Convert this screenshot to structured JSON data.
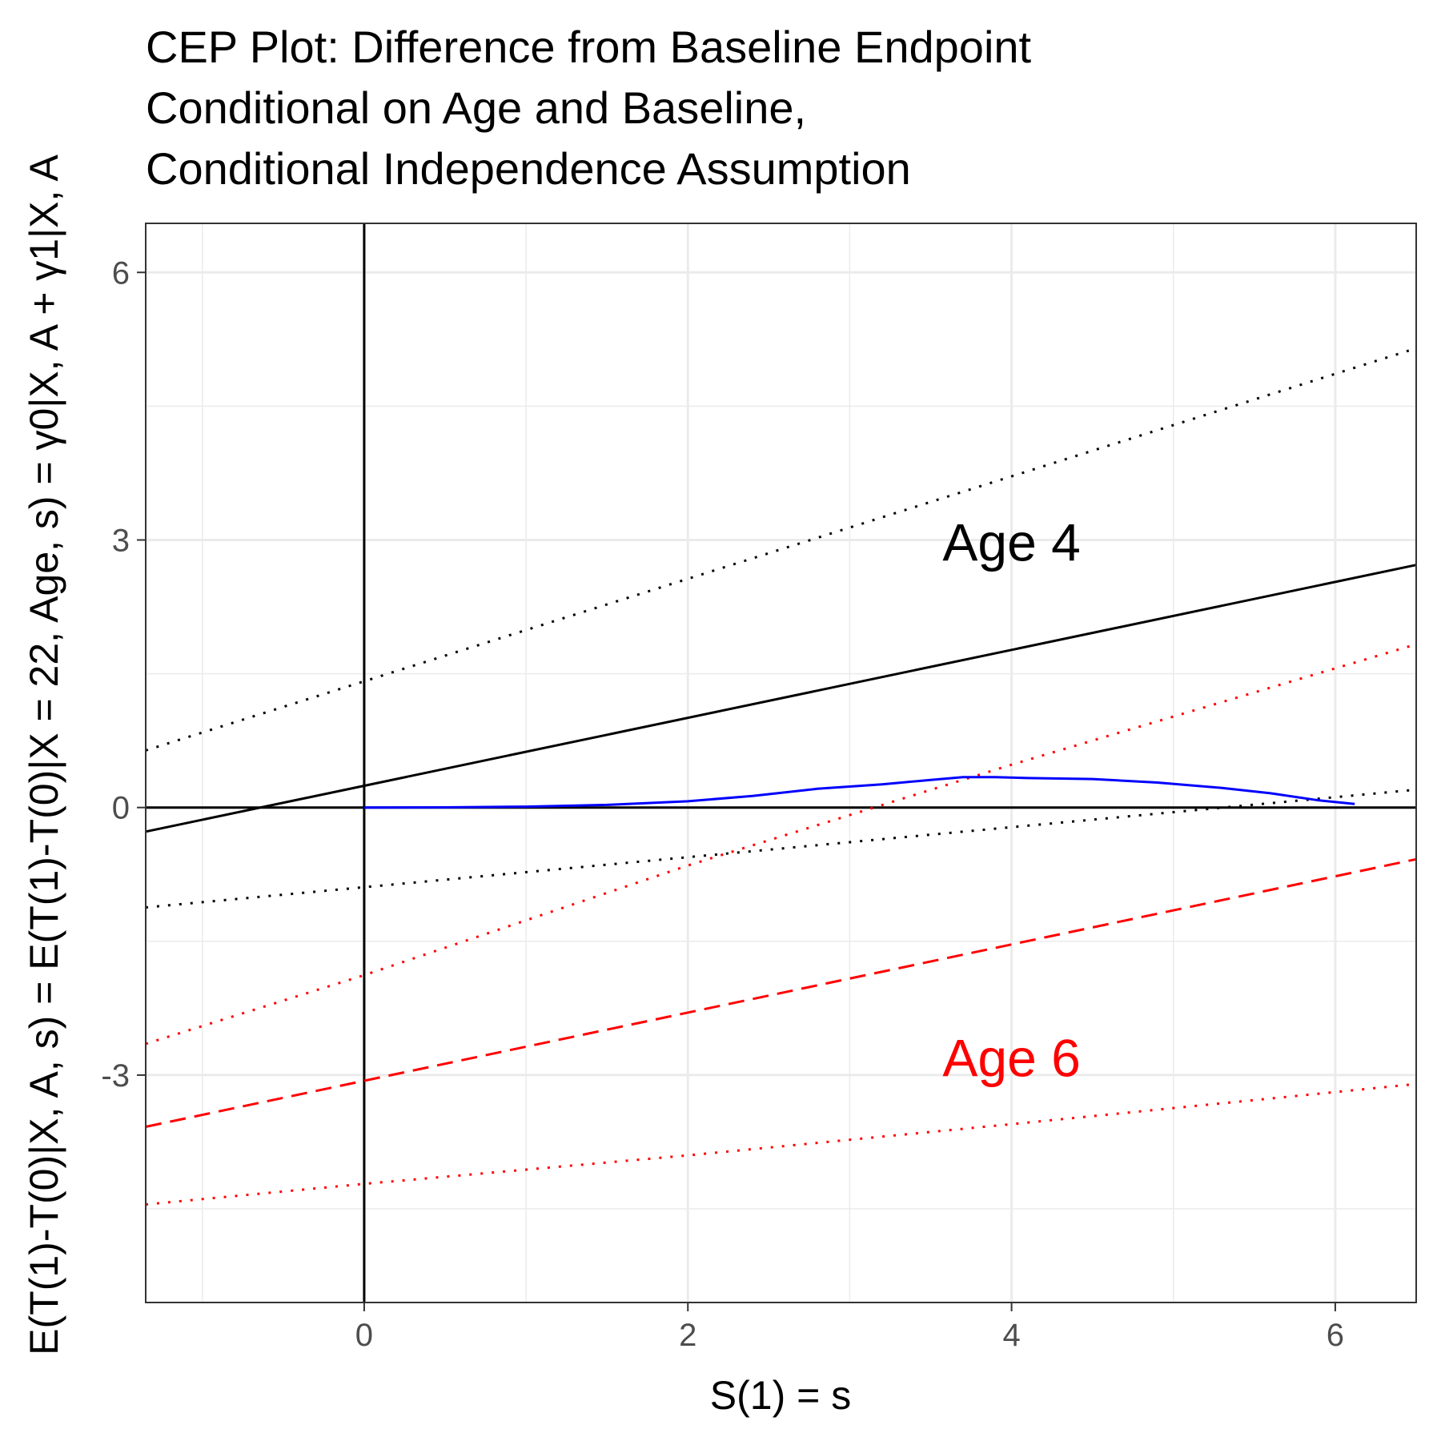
{
  "chart_data": {
    "type": "line",
    "title_lines": [
      "CEP Plot: Difference from Baseline Endpoint",
      "Conditional on Age and Baseline,",
      "Conditional Independence Assumption"
    ],
    "xlabel": "S(1) = s",
    "ylabel": "E(T(1)-T(0)|X, A, s) = E(T(1)-T(0)|X = 22, Age, s) = γ0|X, A + γ1|X, A",
    "xlim": [
      -1.35,
      6.5
    ],
    "ylim": [
      -5.55,
      6.55
    ],
    "x_ticks": [
      0,
      2,
      4,
      6
    ],
    "x_tick_labels": [
      "0",
      "2",
      "4",
      "6"
    ],
    "y_ticks": [
      -3,
      0,
      3,
      6
    ],
    "y_tick_labels": [
      "-3",
      "0",
      "3",
      "6"
    ],
    "grid": true,
    "reference_lines": {
      "vertical_x": 0,
      "horizontal_y": 0
    },
    "series": [
      {
        "name": "Age 4 estimate",
        "style": "solid",
        "color": "#000000",
        "x": [
          -1.35,
          6.5
        ],
        "values": [
          -0.27,
          2.72
        ]
      },
      {
        "name": "Age 4 upper bound",
        "style": "dotted",
        "color": "#000000",
        "x": [
          -1.35,
          6.5
        ],
        "values": [
          0.64,
          5.15
        ]
      },
      {
        "name": "Age 4 lower bound",
        "style": "dotted",
        "color": "#000000",
        "x": [
          -1.35,
          6.5
        ],
        "values": [
          -1.12,
          0.2
        ]
      },
      {
        "name": "Age 6 estimate",
        "style": "dashed",
        "color": "#ff0000",
        "x": [
          -1.35,
          6.5
        ],
        "values": [
          -3.58,
          -0.58
        ]
      },
      {
        "name": "Age 6 upper bound",
        "style": "dotted",
        "color": "#ff0000",
        "x": [
          -1.35,
          0,
          2,
          4,
          6.5
        ],
        "values": [
          -2.65,
          -1.88,
          -0.65,
          0.48,
          1.83
        ]
      },
      {
        "name": "Age 6 lower bound",
        "style": "dotted",
        "color": "#ff0000",
        "x": [
          -1.35,
          0,
          2,
          4,
          6.5
        ],
        "values": [
          -4.45,
          -4.22,
          -3.9,
          -3.55,
          -3.1
        ]
      },
      {
        "name": "Density of S(1)",
        "style": "solid",
        "color": "#0000ff",
        "x": [
          0,
          0.5,
          1.0,
          1.5,
          2.0,
          2.4,
          2.8,
          3.2,
          3.5,
          3.7,
          3.9,
          4.1,
          4.5,
          4.9,
          5.3,
          5.6,
          5.9,
          6.12
        ],
        "values": [
          0.0,
          0.002,
          0.01,
          0.03,
          0.07,
          0.13,
          0.21,
          0.26,
          0.31,
          0.34,
          0.34,
          0.33,
          0.32,
          0.28,
          0.22,
          0.16,
          0.08,
          0.04
        ]
      }
    ],
    "annotations": [
      {
        "text": "Age 4",
        "x": 4.0,
        "y": 2.98,
        "color": "#000000"
      },
      {
        "text": "Age 6",
        "x": 4.0,
        "y": -2.8,
        "color": "#ff0000"
      }
    ]
  }
}
